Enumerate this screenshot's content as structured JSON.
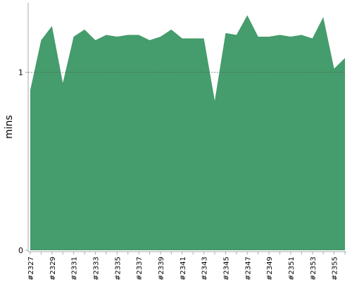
{
  "chart_data": {
    "type": "area",
    "y_label": "mins",
    "categories": [
      "#2327",
      null,
      "#2329",
      null,
      "#2331",
      null,
      "#2333",
      null,
      "#2335",
      null,
      "#2337",
      null,
      "#2339",
      null,
      "#2341",
      null,
      "#2343",
      null,
      "#2345",
      null,
      "#2347",
      null,
      "#2349",
      null,
      "#2351",
      null,
      "#2353",
      null,
      "#2355",
      null
    ],
    "values": [
      0.9,
      1.18,
      1.26,
      0.94,
      1.2,
      1.24,
      1.18,
      1.21,
      1.2,
      1.21,
      1.21,
      1.18,
      1.2,
      1.24,
      1.19,
      1.19,
      1.19,
      0.84,
      1.22,
      1.21,
      1.32,
      1.2,
      1.2,
      1.21,
      1.2,
      1.21,
      1.19,
      1.31,
      1.02,
      1.08
    ],
    "color": "#459c6c",
    "ylim": [
      0,
      1.39
    ],
    "yticks": [
      0,
      1
    ],
    "grid": true
  }
}
